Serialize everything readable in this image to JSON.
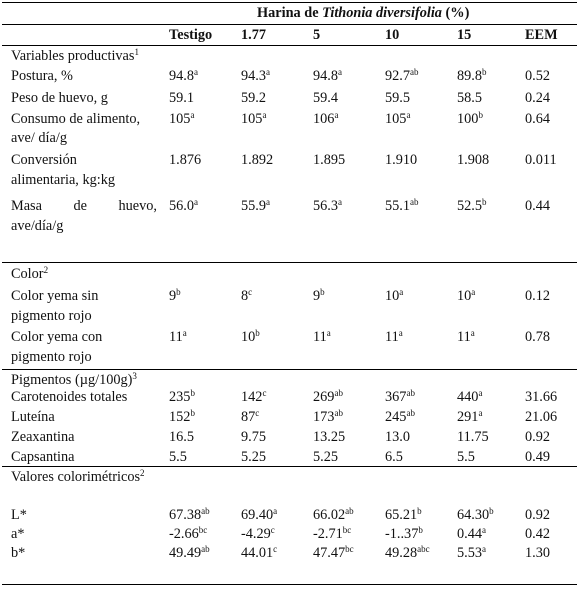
{
  "header": {
    "title_prefix": "Harina de ",
    "title_species": "Tithonia diversifolia",
    "title_suffix": " (%)",
    "columns": [
      "Testigo",
      "1.77",
      "5",
      "10",
      "15",
      "EEM"
    ]
  },
  "sections": {
    "productivas": {
      "label": "Variables productivas",
      "note": "1"
    },
    "color": {
      "label": "Color",
      "note": "2"
    },
    "pigmentos": {
      "label": "Pigmentos (µg/100g)",
      "note": "3"
    },
    "colorimetricos": {
      "label": "Valores colorimétricos",
      "note": "2"
    }
  },
  "rows": [
    {
      "id": "postura",
      "label": [
        "Postura, %"
      ],
      "cells": [
        [
          "94.8",
          "a"
        ],
        [
          "94.3",
          "a"
        ],
        [
          "94.8",
          "a"
        ],
        [
          "92.7",
          "ab"
        ],
        [
          "89.8",
          "b"
        ],
        [
          "0.52",
          ""
        ]
      ]
    },
    {
      "id": "peso",
      "label": [
        "Peso de huevo, g"
      ],
      "cells": [
        [
          "59.1",
          ""
        ],
        [
          "59.2",
          ""
        ],
        [
          "59.4",
          ""
        ],
        [
          "59.5",
          ""
        ],
        [
          "58.5",
          ""
        ],
        [
          "0.24",
          ""
        ]
      ]
    },
    {
      "id": "consumo",
      "label": [
        "Consumo de alimento,",
        "ave/ día/g"
      ],
      "cells": [
        [
          "105",
          "a"
        ],
        [
          "105",
          "a"
        ],
        [
          "106",
          "a"
        ],
        [
          "105",
          "a"
        ],
        [
          "100",
          "b"
        ],
        [
          "0.64",
          ""
        ]
      ]
    },
    {
      "id": "conversion",
      "label": [
        "Conversión",
        "alimentaria, kg:kg"
      ],
      "cells": [
        [
          "1.876",
          ""
        ],
        [
          "1.892",
          ""
        ],
        [
          "1.895",
          ""
        ],
        [
          "1.910",
          ""
        ],
        [
          "1.908",
          ""
        ],
        [
          "0.011",
          ""
        ]
      ]
    },
    {
      "id": "masa",
      "label": [
        "Masa de huevo,",
        "ave/día/g"
      ],
      "label_words": [
        "Masa",
        "de",
        "huevo,"
      ],
      "cells": [
        [
          "56.0",
          "a"
        ],
        [
          "55.9",
          "a"
        ],
        [
          "56.3",
          "a"
        ],
        [
          "55.1",
          "ab"
        ],
        [
          "52.5",
          "b"
        ],
        [
          "0.44",
          ""
        ]
      ]
    },
    {
      "id": "yema_sin",
      "label": [
        "Color yema sin",
        "pigmento rojo"
      ],
      "cells": [
        [
          "9",
          "b"
        ],
        [
          "8",
          "c"
        ],
        [
          "9",
          "b"
        ],
        [
          "10",
          "a"
        ],
        [
          "10",
          "a"
        ],
        [
          "0.12",
          ""
        ]
      ]
    },
    {
      "id": "yema_con",
      "label": [
        "Color yema con",
        "pigmento rojo"
      ],
      "cells": [
        [
          "11",
          "a"
        ],
        [
          "10",
          "b"
        ],
        [
          "11",
          "a"
        ],
        [
          "11",
          "a"
        ],
        [
          "11",
          "a"
        ],
        [
          "0.78",
          ""
        ]
      ]
    },
    {
      "id": "carotenoides",
      "label": [
        "Carotenoides totales"
      ],
      "cells": [
        [
          "235",
          "b"
        ],
        [
          "142",
          "c"
        ],
        [
          "269",
          "ab"
        ],
        [
          "367",
          "ab"
        ],
        [
          "440",
          "a"
        ],
        [
          "31.66",
          ""
        ]
      ]
    },
    {
      "id": "luteina",
      "label": [
        "Luteína"
      ],
      "cells": [
        [
          "152",
          "b"
        ],
        [
          "87",
          "c"
        ],
        [
          "173",
          "ab"
        ],
        [
          "245",
          "ab"
        ],
        [
          "291",
          "a"
        ],
        [
          "21.06",
          ""
        ]
      ]
    },
    {
      "id": "zeaxantina",
      "label": [
        "Zeaxantina"
      ],
      "cells": [
        [
          "16.5",
          ""
        ],
        [
          "9.75",
          ""
        ],
        [
          "13.25",
          ""
        ],
        [
          "13.0",
          ""
        ],
        [
          "11.75",
          ""
        ],
        [
          "0.92",
          ""
        ]
      ]
    },
    {
      "id": "capsantina",
      "label": [
        "Capsantina"
      ],
      "cells": [
        [
          "5.5",
          ""
        ],
        [
          "5.25",
          ""
        ],
        [
          "5.25",
          ""
        ],
        [
          "6.5",
          ""
        ],
        [
          "5.5",
          ""
        ],
        [
          "0.49",
          ""
        ]
      ]
    },
    {
      "id": "L",
      "label": [
        "L*"
      ],
      "cells": [
        [
          "67.38",
          "ab"
        ],
        [
          "69.40",
          "a"
        ],
        [
          "66.02",
          "ab"
        ],
        [
          "65.21",
          "b"
        ],
        [
          "64.30",
          "b"
        ],
        [
          "0.92",
          ""
        ]
      ]
    },
    {
      "id": "a",
      "label": [
        "a*"
      ],
      "cells": [
        [
          "-2.66",
          "bc"
        ],
        [
          "-4.29",
          "c"
        ],
        [
          "-2.71",
          "bc"
        ],
        [
          "-1..37",
          "b"
        ],
        [
          "0.44",
          "a"
        ],
        [
          "0.42",
          ""
        ]
      ]
    },
    {
      "id": "b",
      "label": [
        "b*"
      ],
      "cells": [
        [
          "49.49",
          "ab"
        ],
        [
          "44.01",
          "c"
        ],
        [
          "47.47",
          "bc"
        ],
        [
          "49.28",
          "abc"
        ],
        [
          "5.53",
          "a"
        ],
        [
          "1.30",
          ""
        ]
      ]
    }
  ]
}
